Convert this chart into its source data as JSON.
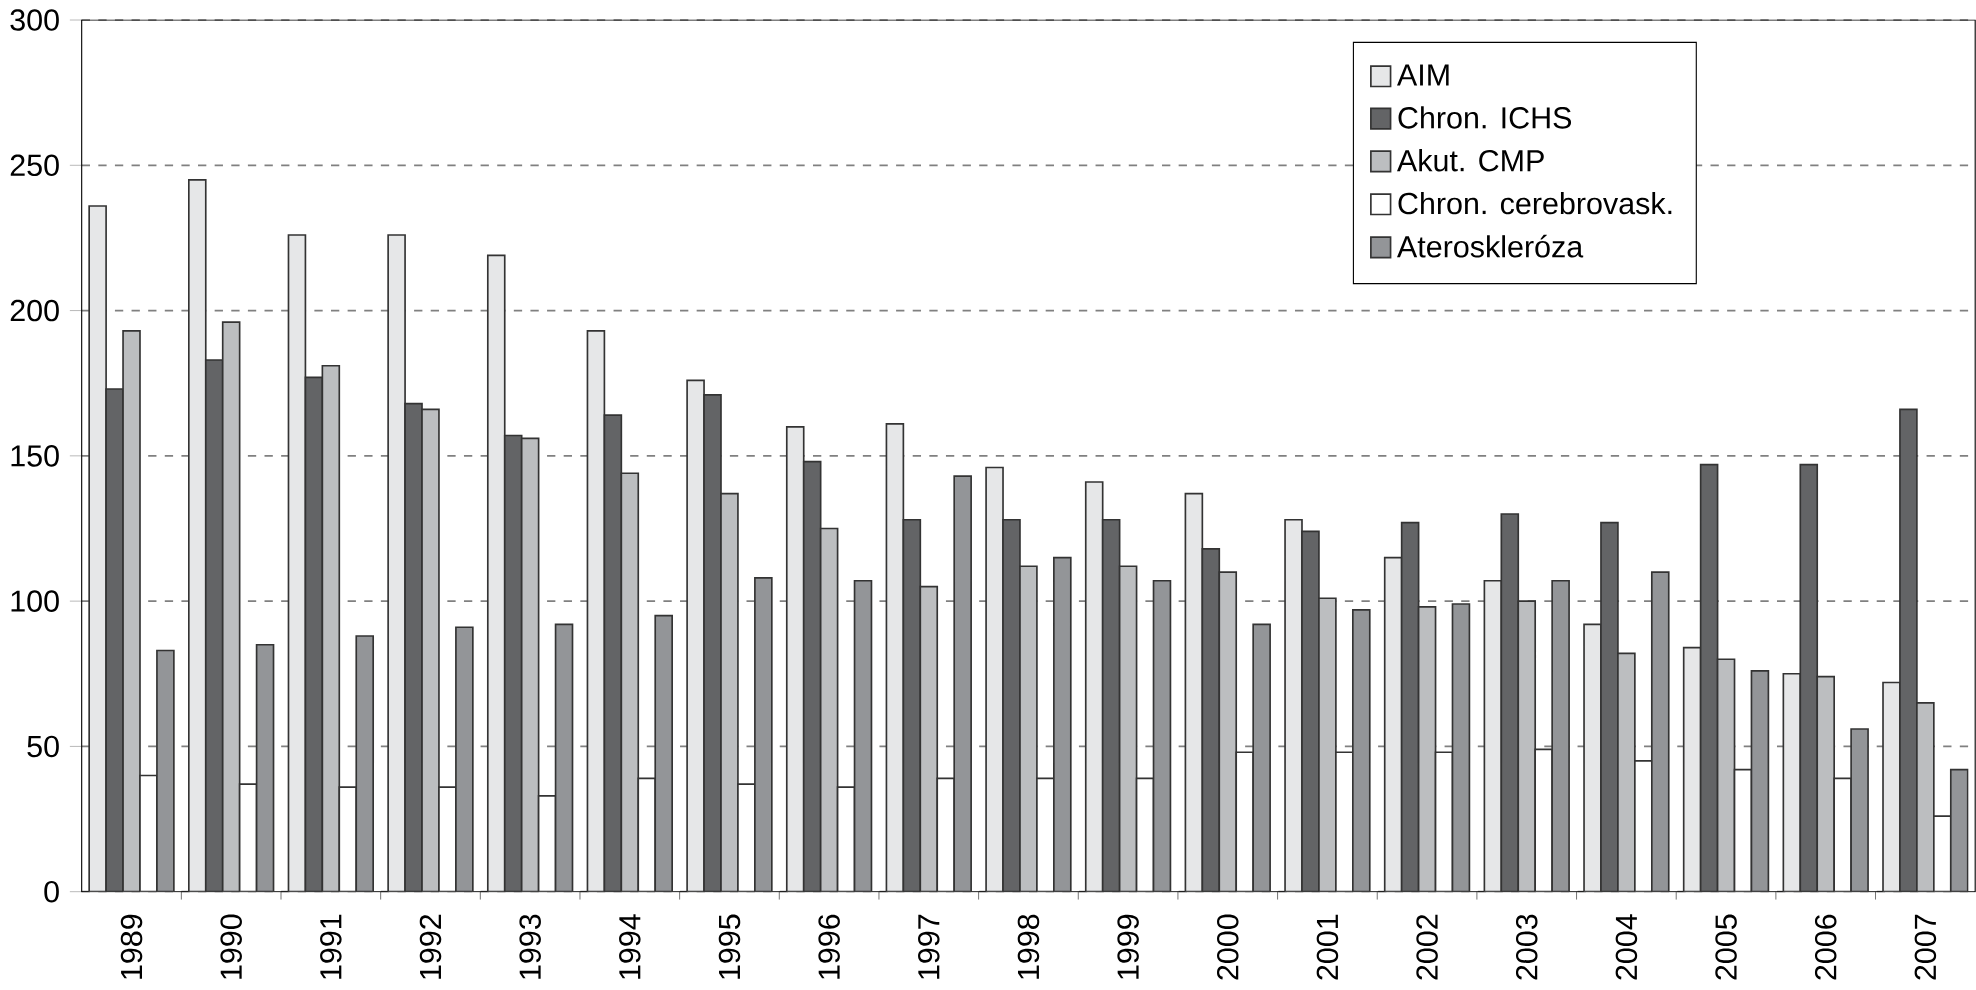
{
  "chart_data": {
    "type": "bar",
    "categories": [
      "1989",
      "1990",
      "1991",
      "1992",
      "1993",
      "1994",
      "1995",
      "1996",
      "1997",
      "1998",
      "1999",
      "2000",
      "2001",
      "2002",
      "2003",
      "2004",
      "2005",
      "2006",
      "2007"
    ],
    "series": [
      {
        "name": "AIM",
        "color": "#e6e7e8",
        "values": [
          236,
          245,
          226,
          226,
          219,
          193,
          176,
          160,
          161,
          146,
          141,
          137,
          128,
          115,
          107,
          92,
          84,
          75,
          72
        ]
      },
      {
        "name": "Chron. ICHS",
        "color": "#636466",
        "values": [
          173,
          183,
          177,
          168,
          157,
          164,
          171,
          148,
          128,
          128,
          128,
          118,
          124,
          127,
          130,
          127,
          147,
          147,
          166
        ]
      },
      {
        "name": "Akut. CMP",
        "color": "#bcbec0",
        "values": [
          193,
          196,
          181,
          166,
          156,
          144,
          137,
          125,
          105,
          112,
          112,
          110,
          101,
          98,
          100,
          82,
          80,
          74,
          65
        ]
      },
      {
        "name": "Chron. cerebrovask.",
        "color": "#ffffff",
        "values": [
          40,
          37,
          36,
          36,
          33,
          39,
          37,
          36,
          39,
          39,
          39,
          48,
          48,
          48,
          49,
          45,
          42,
          39,
          26
        ]
      },
      {
        "name": "Ateroskleróza",
        "color": "#939598",
        "values": [
          83,
          85,
          88,
          91,
          92,
          95,
          108,
          107,
          143,
          115,
          107,
          92,
          97,
          99,
          107,
          110,
          76,
          56,
          42
        ]
      }
    ],
    "ylim": [
      0,
      300
    ],
    "yticks": [
      0,
      50,
      100,
      150,
      200,
      250,
      300
    ],
    "grid": "y",
    "legend": "top right"
  }
}
